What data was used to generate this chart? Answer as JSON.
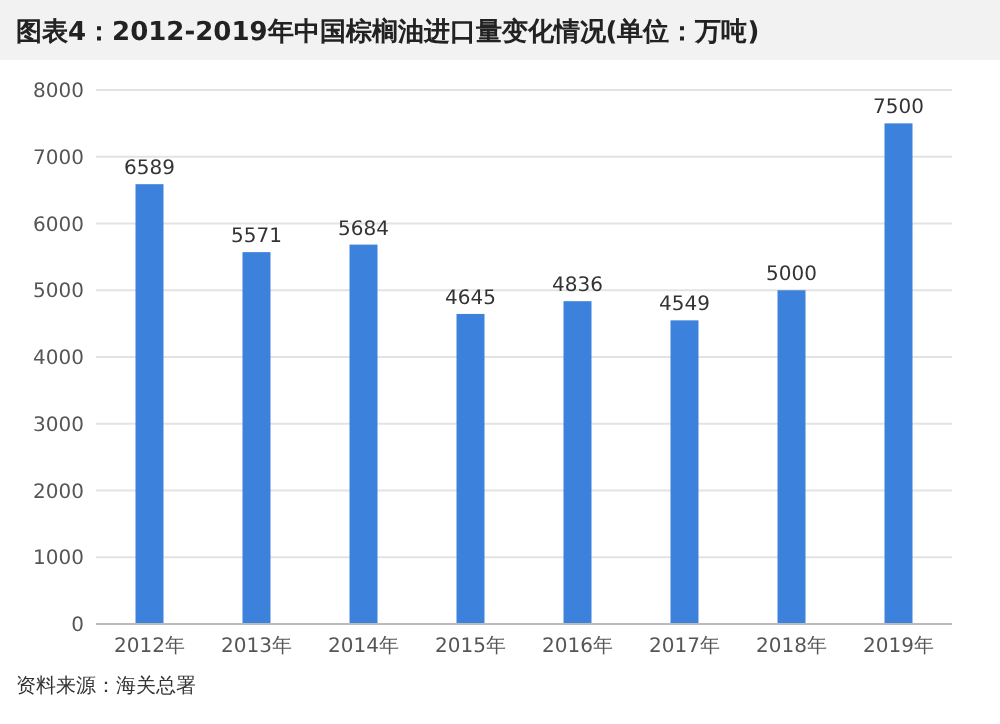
{
  "chart_data": {
    "type": "bar",
    "title": "图表4：2012-2019年中国棕榈油进口量变化情况(单位：万吨)",
    "categories": [
      "2012年",
      "2013年",
      "2014年",
      "2015年",
      "2016年",
      "2017年",
      "2018年",
      "2019年"
    ],
    "values": [
      6589,
      5571,
      5684,
      4645,
      4836,
      4549,
      5000,
      7500
    ],
    "color": "#3c82dc",
    "ylim": [
      0,
      8000
    ],
    "yticks": [
      0,
      1000,
      2000,
      3000,
      4000,
      5000,
      6000,
      7000,
      8000
    ],
    "grid": "y",
    "data_labels": true,
    "annotations": [
      "资料来源：海关总署"
    ]
  }
}
